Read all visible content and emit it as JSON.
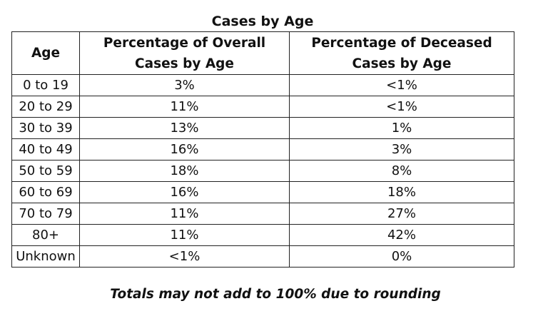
{
  "title": "Cases by Age",
  "headers": {
    "age": "Age",
    "overall_line1": "Percentage of Overall",
    "overall_line2": "Cases by Age",
    "deceased_line1": "Percentage of Deceased",
    "deceased_line2": "Cases by Age"
  },
  "rows": [
    {
      "age": "0 to 19",
      "overall": "3%",
      "deceased": "<1%"
    },
    {
      "age": "20 to 29",
      "overall": "11%",
      "deceased": "<1%"
    },
    {
      "age": "30 to 39",
      "overall": "13%",
      "deceased": "1%"
    },
    {
      "age": "40 to 49",
      "overall": "16%",
      "deceased": "3%"
    },
    {
      "age": "50 to 59",
      "overall": "18%",
      "deceased": "8%"
    },
    {
      "age": "60 to 69",
      "overall": "16%",
      "deceased": "18%"
    },
    {
      "age": "70 to 79",
      "overall": "11%",
      "deceased": "27%"
    },
    {
      "age": "80+",
      "overall": "11%",
      "deceased": "42%"
    },
    {
      "age": "Unknown",
      "overall": "<1%",
      "deceased": "0%"
    }
  ],
  "note": "Totals may not add to 100% due to rounding"
}
